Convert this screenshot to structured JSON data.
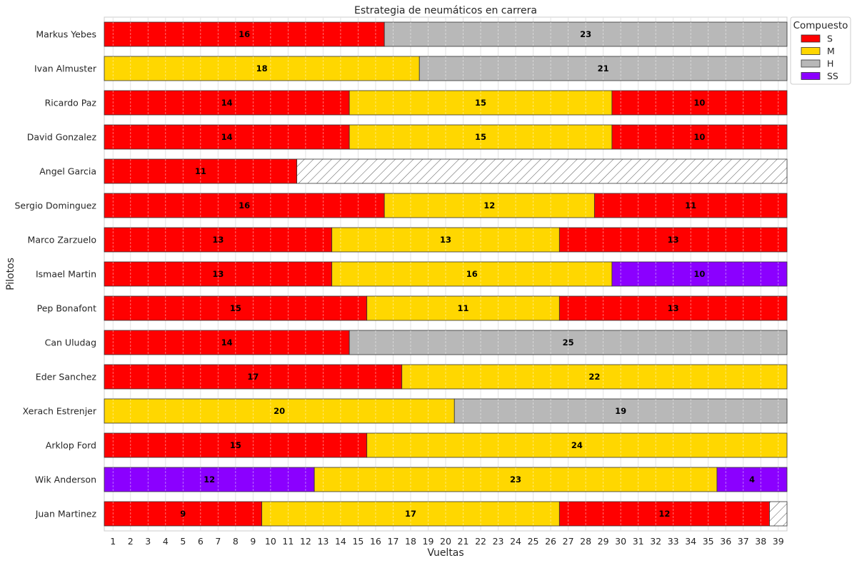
{
  "chart_data": {
    "type": "bar",
    "orientation": "horizontal-stacked",
    "title": "Estrategia de neumáticos en carrera",
    "xlabel": "Vueltas",
    "ylabel": "Pilotos",
    "xlim": [
      0.5,
      39.5
    ],
    "x_ticks": [
      1,
      2,
      3,
      4,
      5,
      6,
      7,
      8,
      9,
      10,
      11,
      12,
      13,
      14,
      15,
      16,
      17,
      18,
      19,
      20,
      21,
      22,
      23,
      24,
      25,
      26,
      27,
      28,
      29,
      30,
      31,
      32,
      33,
      34,
      35,
      36,
      37,
      38,
      39
    ],
    "grid": true,
    "legend": {
      "title": "Compuesto",
      "placement": "right-top",
      "entries": [
        {
          "label": "S",
          "color": "#ff0000"
        },
        {
          "label": "M",
          "color": "#ffd700"
        },
        {
          "label": "H",
          "color": "#b8b8b8"
        },
        {
          "label": "SS",
          "color": "#8b00ff"
        }
      ]
    },
    "colors": {
      "S": "#ff0000",
      "M": "#ffd700",
      "H": "#b8b8b8",
      "SS": "#8b00ff",
      "none": "#ffffff"
    },
    "drivers": [
      {
        "name": "Markus Yebes",
        "stints": [
          {
            "compound": "S",
            "laps": 16
          },
          {
            "compound": "H",
            "laps": 23
          }
        ]
      },
      {
        "name": "Ivan Almuster",
        "stints": [
          {
            "compound": "M",
            "laps": 18
          },
          {
            "compound": "H",
            "laps": 21
          }
        ]
      },
      {
        "name": "Ricardo Paz",
        "stints": [
          {
            "compound": "S",
            "laps": 14
          },
          {
            "compound": "M",
            "laps": 15
          },
          {
            "compound": "S",
            "laps": 10
          }
        ]
      },
      {
        "name": "David Gonzalez",
        "stints": [
          {
            "compound": "S",
            "laps": 14
          },
          {
            "compound": "M",
            "laps": 15
          },
          {
            "compound": "S",
            "laps": 10
          }
        ]
      },
      {
        "name": "Angel Garcia",
        "stints": [
          {
            "compound": "S",
            "laps": 11
          },
          {
            "compound": "none",
            "laps": 28
          }
        ]
      },
      {
        "name": "Sergio Dominguez",
        "stints": [
          {
            "compound": "S",
            "laps": 16
          },
          {
            "compound": "M",
            "laps": 12
          },
          {
            "compound": "S",
            "laps": 11
          }
        ]
      },
      {
        "name": "Marco Zarzuelo",
        "stints": [
          {
            "compound": "S",
            "laps": 13
          },
          {
            "compound": "M",
            "laps": 13
          },
          {
            "compound": "S",
            "laps": 13
          }
        ]
      },
      {
        "name": "Ismael Martin",
        "stints": [
          {
            "compound": "S",
            "laps": 13
          },
          {
            "compound": "M",
            "laps": 16
          },
          {
            "compound": "SS",
            "laps": 10
          }
        ]
      },
      {
        "name": "Pep Bonafont",
        "stints": [
          {
            "compound": "S",
            "laps": 15
          },
          {
            "compound": "M",
            "laps": 11
          },
          {
            "compound": "S",
            "laps": 13
          }
        ]
      },
      {
        "name": "Can Uludag",
        "stints": [
          {
            "compound": "S",
            "laps": 14
          },
          {
            "compound": "H",
            "laps": 25
          }
        ]
      },
      {
        "name": "Eder Sanchez",
        "stints": [
          {
            "compound": "S",
            "laps": 17
          },
          {
            "compound": "M",
            "laps": 22
          }
        ]
      },
      {
        "name": "Xerach Estrenjer",
        "stints": [
          {
            "compound": "M",
            "laps": 20
          },
          {
            "compound": "H",
            "laps": 19
          }
        ]
      },
      {
        "name": "Arklop Ford",
        "stints": [
          {
            "compound": "S",
            "laps": 15
          },
          {
            "compound": "M",
            "laps": 24
          }
        ]
      },
      {
        "name": "Wik Anderson",
        "stints": [
          {
            "compound": "SS",
            "laps": 12
          },
          {
            "compound": "M",
            "laps": 23
          },
          {
            "compound": "SS",
            "laps": 4
          }
        ]
      },
      {
        "name": "Juan Martinez",
        "stints": [
          {
            "compound": "S",
            "laps": 9
          },
          {
            "compound": "M",
            "laps": 17
          },
          {
            "compound": "S",
            "laps": 12
          },
          {
            "compound": "none",
            "laps": 1,
            "label": ""
          }
        ]
      }
    ]
  }
}
